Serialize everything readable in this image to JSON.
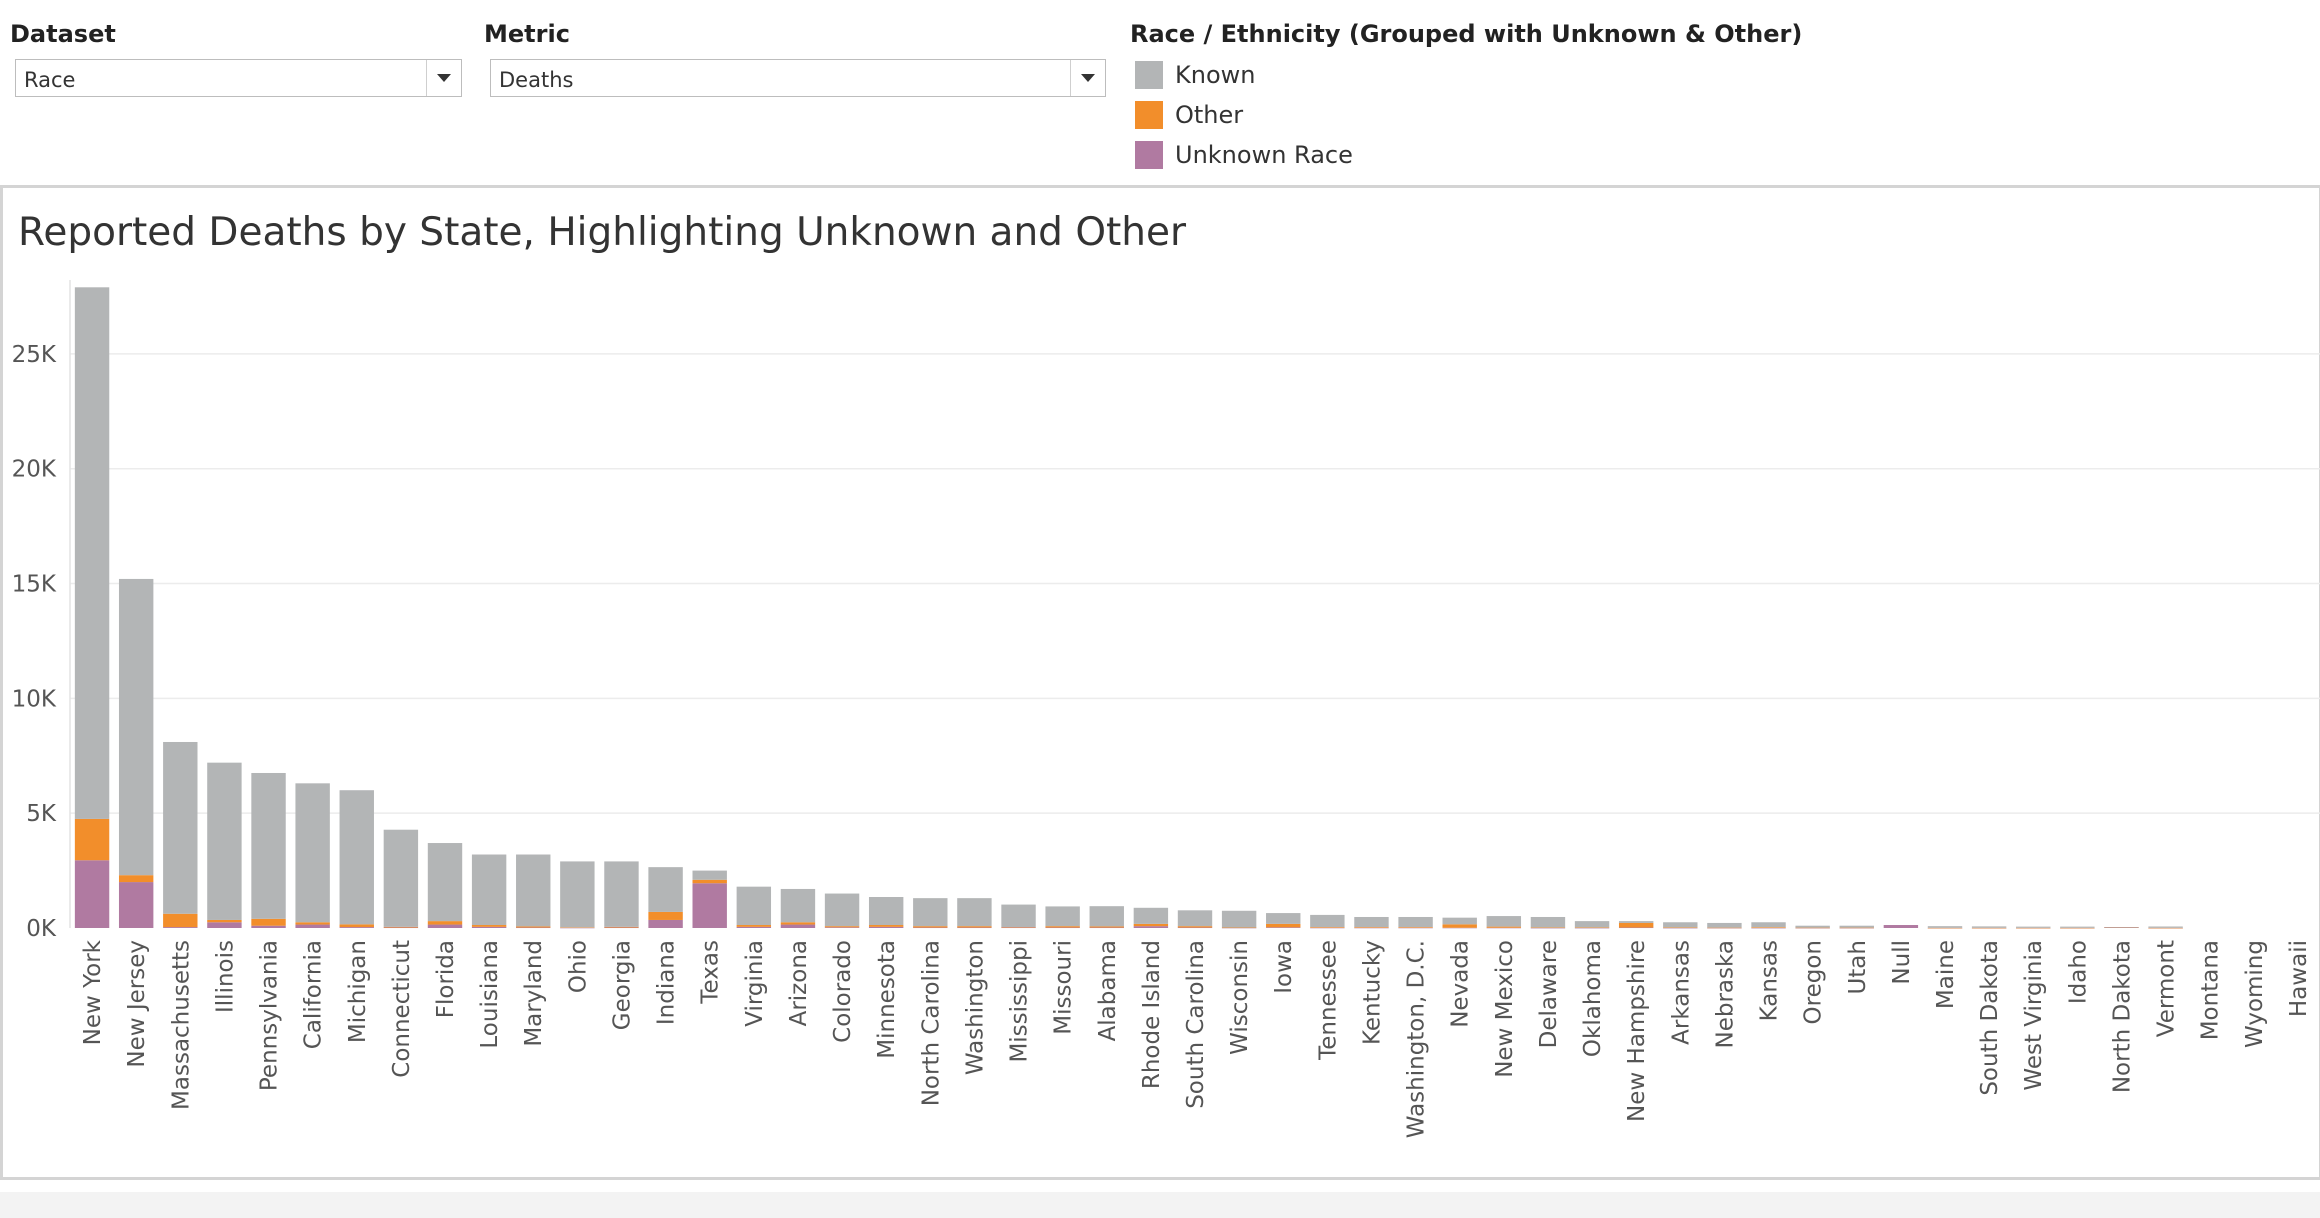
{
  "filters": {
    "dataset": {
      "label": "Dataset",
      "value": "Race"
    },
    "metric": {
      "label": "Metric",
      "value": "Deaths"
    }
  },
  "legend": {
    "title": "Race / Ethnicity (Grouped with Unknown & Other)",
    "items": [
      {
        "label": "Known",
        "color": "#b3b5b6"
      },
      {
        "label": "Other",
        "color": "#f28e2b"
      },
      {
        "label": "Unknown Race",
        "color": "#b07aa1"
      }
    ]
  },
  "chart_data": {
    "type": "bar",
    "stacked": true,
    "title": "Reported Deaths by State, Highlighting Unknown and Other",
    "xlabel": "",
    "ylabel": "",
    "ylim": [
      0,
      28000
    ],
    "yticks": [
      0,
      5000,
      10000,
      15000,
      20000,
      25000
    ],
    "ytick_labels": [
      "0K",
      "5K",
      "10K",
      "15K",
      "20K",
      "25K"
    ],
    "grid": true,
    "legend_position": "top",
    "categories": [
      "New York",
      "New Jersey",
      "Massachusetts",
      "Illinois",
      "Pennsylvania",
      "California",
      "Michigan",
      "Connecticut",
      "Florida",
      "Louisiana",
      "Maryland",
      "Ohio",
      "Georgia",
      "Indiana",
      "Texas",
      "Virginia",
      "Arizona",
      "Colorado",
      "Minnesota",
      "North Carolina",
      "Washington",
      "Mississippi",
      "Missouri",
      "Alabama",
      "Rhode Island",
      "South Carolina",
      "Wisconsin",
      "Iowa",
      "Tennessee",
      "Kentucky",
      "Washington, D.C.",
      "Nevada",
      "New Mexico",
      "Delaware",
      "Oklahoma",
      "New Hampshire",
      "Arkansas",
      "Nebraska",
      "Kansas",
      "Oregon",
      "Utah",
      "Null",
      "Maine",
      "South Dakota",
      "West Virginia",
      "Idaho",
      "North Dakota",
      "Vermont",
      "Montana",
      "Wyoming",
      "Hawaii"
    ],
    "series": [
      {
        "name": "Unknown Race",
        "color": "#b07aa1",
        "values": [
          2950,
          2000,
          40,
          250,
          100,
          150,
          40,
          20,
          150,
          50,
          20,
          10,
          20,
          350,
          1950,
          50,
          150,
          30,
          50,
          20,
          20,
          20,
          20,
          20,
          80,
          20,
          10,
          30,
          10,
          10,
          10,
          10,
          10,
          5,
          5,
          20,
          5,
          5,
          5,
          5,
          5,
          130,
          2,
          2,
          2,
          2,
          30,
          2,
          0,
          0,
          0
        ]
      },
      {
        "name": "Other",
        "color": "#f28e2b",
        "values": [
          1800,
          300,
          580,
          100,
          300,
          100,
          120,
          30,
          150,
          80,
          50,
          20,
          30,
          350,
          150,
          80,
          100,
          50,
          80,
          60,
          60,
          20,
          60,
          50,
          100,
          60,
          10,
          150,
          30,
          30,
          30,
          150,
          50,
          20,
          20,
          200,
          20,
          10,
          30,
          10,
          10,
          0,
          5,
          5,
          5,
          5,
          5,
          5,
          0,
          0,
          0
        ]
      },
      {
        "name": "Known",
        "color": "#b3b5b6",
        "values": [
          23150,
          12900,
          7480,
          6850,
          6350,
          6050,
          5840,
          4230,
          3400,
          3070,
          3130,
          2870,
          2850,
          1950,
          400,
          1670,
          1450,
          1420,
          1220,
          1220,
          1220,
          980,
          860,
          880,
          700,
          690,
          730,
          470,
          530,
          440,
          440,
          290,
          460,
          455,
          275,
          80,
          225,
          205,
          215,
          85,
          85,
          0,
          73,
          63,
          53,
          53,
          5,
          58,
          0,
          0,
          0
        ]
      }
    ]
  }
}
